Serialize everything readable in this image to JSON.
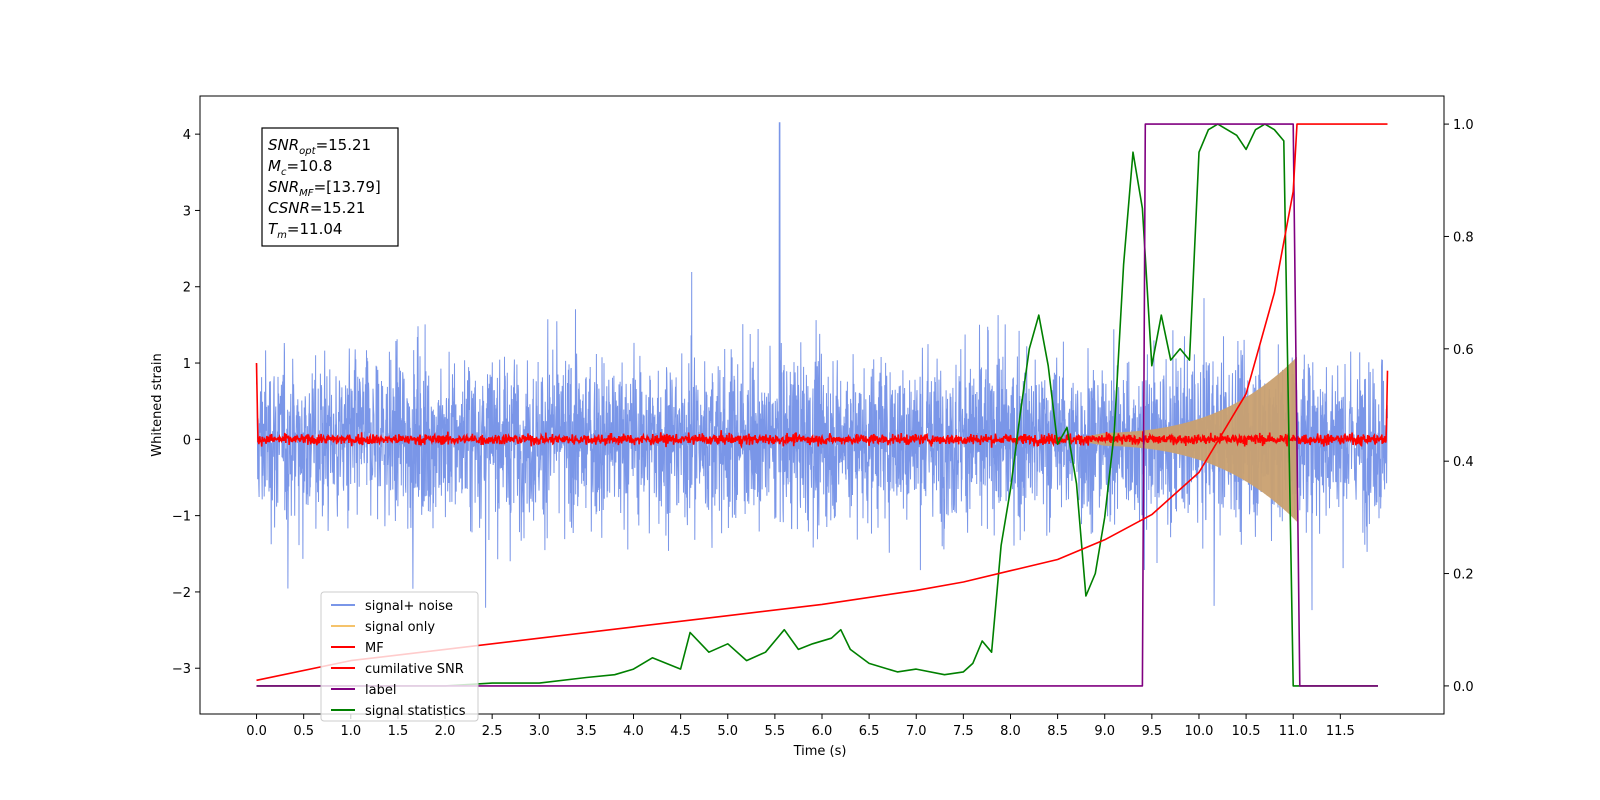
{
  "chart_data": {
    "type": "line",
    "xlabel": "Time (s)",
    "ylabel_left": "Whitened strain",
    "ylabel_right": "",
    "xlim": [
      -0.6,
      12.6
    ],
    "ylim_left": [
      -3.6,
      4.5
    ],
    "ylim_right": [
      -0.05,
      1.05
    ],
    "x_ticks": [
      "0.0",
      "0.5",
      "1.0",
      "1.5",
      "2.0",
      "2.5",
      "3.0",
      "3.5",
      "4.0",
      "4.5",
      "5.0",
      "5.5",
      "6.0",
      "6.5",
      "7.0",
      "7.5",
      "8.0",
      "8.5",
      "9.0",
      "9.5",
      "10.0",
      "10.5",
      "11.0",
      "11.5"
    ],
    "y_ticks_left": [
      "4",
      "3",
      "2",
      "1",
      "0",
      "−1",
      "−2",
      "−3"
    ],
    "y_ticks_right": [
      "1.0",
      "0.8",
      "0.6",
      "0.4",
      "0.2",
      "0.0"
    ],
    "grid": false,
    "legend_position": "lower-left",
    "info_box": {
      "position": "upper-left",
      "entries": [
        {
          "var": "SNR",
          "sub": "opt",
          "value": "=15.21"
        },
        {
          "var": "M",
          "sub": "c",
          "value": "=10.8"
        },
        {
          "var": "SNR",
          "sub": "MF",
          "value": "=[13.79]"
        },
        {
          "var": "CSNR",
          "sub": "",
          "value": "=15.21"
        },
        {
          "var": "T",
          "sub": "m",
          "value": "=11.04"
        }
      ]
    },
    "series": [
      {
        "name": "signal+ noise",
        "color": "#6b8be6",
        "axis": "left",
        "description": "whitened noise, amplitude ~ ±2.5 with spikes up to 4.2 at t≈5.55"
      },
      {
        "name": "signal only",
        "color": "#f5c36b",
        "axis": "left",
        "chirp": {
          "start": 8.6,
          "end": 11.04,
          "max_amplitude": 1.0
        }
      },
      {
        "name": "MF",
        "color": "#ff0000",
        "axis": "left",
        "description": "matched filter output ~ ±0.15 around 0, spike to 1.0 at t=0 and 0.9 at t=12"
      },
      {
        "name": "cumilative SNR",
        "color": "#ff0000",
        "axis": "right",
        "x": [
          0.0,
          1.0,
          2.0,
          3.0,
          4.0,
          5.0,
          6.0,
          7.0,
          7.5,
          8.0,
          8.5,
          9.0,
          9.5,
          10.0,
          10.5,
          10.8,
          11.0,
          11.04,
          11.2,
          12.0
        ],
        "values": [
          0.01,
          0.045,
          0.065,
          0.085,
          0.105,
          0.125,
          0.145,
          0.17,
          0.185,
          0.205,
          0.225,
          0.26,
          0.305,
          0.38,
          0.52,
          0.7,
          0.88,
          1.0,
          1.0,
          1.0
        ]
      },
      {
        "name": "label",
        "color": "#800080",
        "axis": "right",
        "x": [
          0.0,
          9.4,
          9.43,
          11.0,
          11.07,
          11.9
        ],
        "values": [
          0.0,
          0.0,
          1.0,
          1.0,
          0.0,
          0.0
        ]
      },
      {
        "name": "signal statistics",
        "color": "#008000",
        "axis": "right",
        "x": [
          0.0,
          1.0,
          2.0,
          2.5,
          3.0,
          3.5,
          3.8,
          4.0,
          4.2,
          4.5,
          4.6,
          4.8,
          5.0,
          5.2,
          5.4,
          5.6,
          5.75,
          5.9,
          6.1,
          6.2,
          6.3,
          6.5,
          6.8,
          7.0,
          7.3,
          7.5,
          7.6,
          7.7,
          7.8,
          7.9,
          8.0,
          8.1,
          8.2,
          8.3,
          8.4,
          8.5,
          8.6,
          8.7,
          8.8,
          8.9,
          9.0,
          9.1,
          9.2,
          9.3,
          9.4,
          9.5,
          9.6,
          9.7,
          9.8,
          9.9,
          10.0,
          10.1,
          10.2,
          10.3,
          10.4,
          10.5,
          10.6,
          10.7,
          10.8,
          10.9,
          11.0,
          11.05,
          11.1,
          11.3,
          11.9
        ],
        "values": [
          0.0,
          0.0,
          0.0,
          0.005,
          0.005,
          0.015,
          0.02,
          0.03,
          0.05,
          0.03,
          0.095,
          0.06,
          0.075,
          0.045,
          0.06,
          0.1,
          0.065,
          0.075,
          0.085,
          0.1,
          0.065,
          0.04,
          0.025,
          0.03,
          0.02,
          0.025,
          0.04,
          0.08,
          0.06,
          0.25,
          0.35,
          0.48,
          0.6,
          0.66,
          0.57,
          0.43,
          0.46,
          0.36,
          0.16,
          0.2,
          0.3,
          0.45,
          0.75,
          0.95,
          0.85,
          0.57,
          0.66,
          0.58,
          0.6,
          0.58,
          0.95,
          0.99,
          1.0,
          0.99,
          0.98,
          0.955,
          0.99,
          1.0,
          0.99,
          0.97,
          0.0,
          0.0,
          0.0,
          0.0,
          0.0
        ]
      }
    ]
  }
}
